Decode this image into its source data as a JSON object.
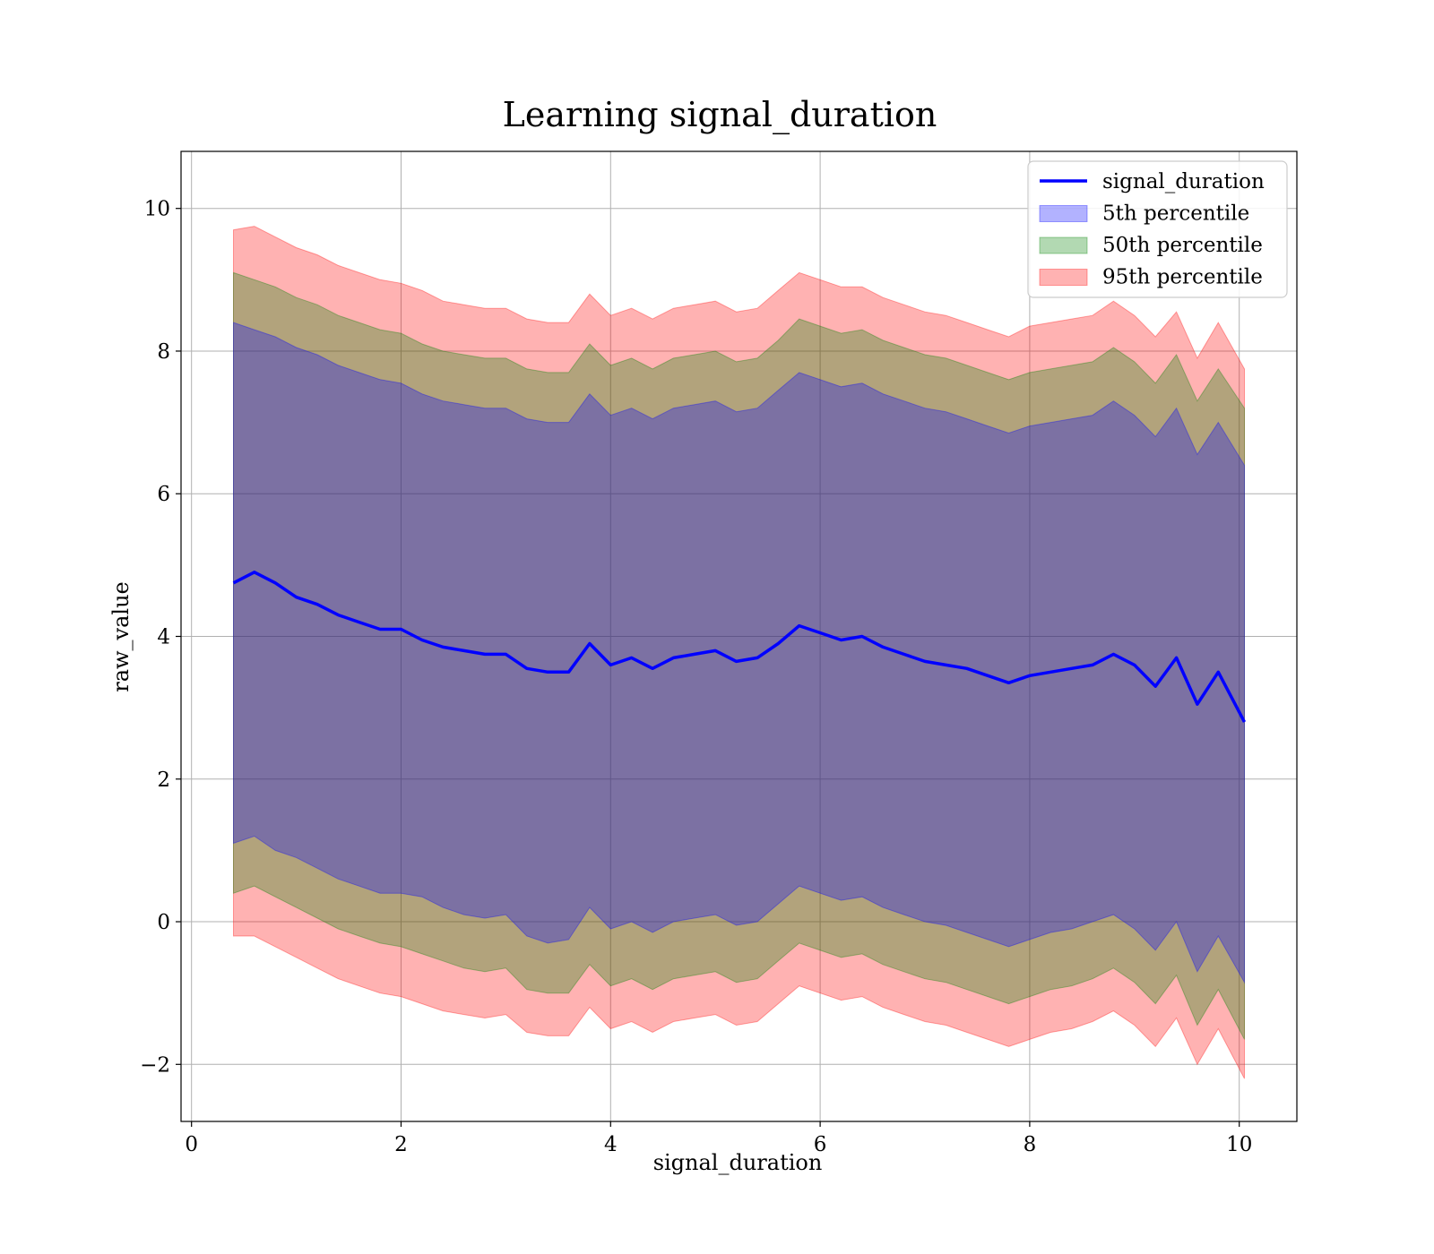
{
  "chart_data": {
    "type": "line",
    "title": "Learning signal_duration",
    "xlabel": "signal_duration",
    "ylabel": "raw_value",
    "xlim": [
      -0.1,
      10.55
    ],
    "ylim": [
      -2.8,
      10.8
    ],
    "xticks": [
      0,
      2,
      4,
      6,
      8,
      10
    ],
    "yticks": [
      -2,
      0,
      2,
      4,
      6,
      8,
      10
    ],
    "xtick_labels": [
      "0",
      "2",
      "4",
      "6",
      "8",
      "10"
    ],
    "ytick_labels": [
      "−2",
      "0",
      "2",
      "4",
      "6",
      "8",
      "10"
    ],
    "grid": true,
    "legend_position": "top-right",
    "x": [
      0.4,
      0.6,
      0.8,
      1.0,
      1.2,
      1.4,
      1.6,
      1.8,
      2.0,
      2.2,
      2.4,
      2.6,
      2.8,
      3.0,
      3.2,
      3.4,
      3.6,
      3.8,
      4.0,
      4.2,
      4.4,
      4.6,
      4.8,
      5.0,
      5.2,
      5.4,
      5.6,
      5.8,
      6.0,
      6.2,
      6.4,
      6.6,
      6.8,
      7.0,
      7.2,
      7.4,
      7.6,
      7.8,
      8.0,
      8.2,
      8.4,
      8.6,
      8.8,
      9.0,
      9.2,
      9.4,
      9.6,
      9.8,
      10.05
    ],
    "series": [
      {
        "name": "signal_duration",
        "kind": "line",
        "color": "#0000ff",
        "values": [
          4.75,
          4.9,
          4.75,
          4.55,
          4.45,
          4.3,
          4.2,
          4.1,
          4.1,
          3.95,
          3.85,
          3.8,
          3.75,
          3.75,
          3.55,
          3.5,
          3.5,
          3.9,
          3.6,
          3.7,
          3.55,
          3.7,
          3.75,
          3.8,
          3.65,
          3.7,
          3.9,
          4.15,
          4.05,
          3.95,
          4.0,
          3.85,
          3.75,
          3.65,
          3.6,
          3.55,
          3.45,
          3.35,
          3.45,
          3.5,
          3.55,
          3.6,
          3.75,
          3.6,
          3.3,
          3.7,
          3.05,
          3.5,
          2.8
        ]
      },
      {
        "name": "5th percentile",
        "kind": "band",
        "color": "#0000ff",
        "upper": [
          8.4,
          8.3,
          8.2,
          8.05,
          7.95,
          7.8,
          7.7,
          7.6,
          7.55,
          7.4,
          7.3,
          7.25,
          7.2,
          7.2,
          7.05,
          7.0,
          7.0,
          7.4,
          7.1,
          7.2,
          7.05,
          7.2,
          7.25,
          7.3,
          7.15,
          7.2,
          7.45,
          7.7,
          7.6,
          7.5,
          7.55,
          7.4,
          7.3,
          7.2,
          7.15,
          7.05,
          6.95,
          6.85,
          6.95,
          7.0,
          7.05,
          7.1,
          7.3,
          7.1,
          6.8,
          7.2,
          6.55,
          7.0,
          6.4
        ],
        "lower": [
          1.1,
          1.2,
          1.0,
          0.9,
          0.75,
          0.6,
          0.5,
          0.4,
          0.4,
          0.35,
          0.2,
          0.1,
          0.05,
          0.1,
          -0.2,
          -0.3,
          -0.25,
          0.2,
          -0.1,
          0.0,
          -0.15,
          0.0,
          0.05,
          0.1,
          -0.05,
          0.0,
          0.25,
          0.5,
          0.4,
          0.3,
          0.35,
          0.2,
          0.1,
          0.0,
          -0.05,
          -0.15,
          -0.25,
          -0.35,
          -0.25,
          -0.15,
          -0.1,
          0.0,
          0.1,
          -0.1,
          -0.4,
          0.0,
          -0.7,
          -0.2,
          -0.85
        ]
      },
      {
        "name": "50th percentile",
        "kind": "band",
        "color": "#008000",
        "upper": [
          9.1,
          9.0,
          8.9,
          8.75,
          8.65,
          8.5,
          8.4,
          8.3,
          8.25,
          8.1,
          8.0,
          7.95,
          7.9,
          7.9,
          7.75,
          7.7,
          7.7,
          8.1,
          7.8,
          7.9,
          7.75,
          7.9,
          7.95,
          8.0,
          7.85,
          7.9,
          8.15,
          8.45,
          8.35,
          8.25,
          8.3,
          8.15,
          8.05,
          7.95,
          7.9,
          7.8,
          7.7,
          7.6,
          7.7,
          7.75,
          7.8,
          7.85,
          8.05,
          7.85,
          7.55,
          7.95,
          7.3,
          7.75,
          7.2
        ],
        "lower": [
          0.4,
          0.5,
          0.35,
          0.2,
          0.05,
          -0.1,
          -0.2,
          -0.3,
          -0.35,
          -0.45,
          -0.55,
          -0.65,
          -0.7,
          -0.65,
          -0.95,
          -1.0,
          -1.0,
          -0.6,
          -0.9,
          -0.8,
          -0.95,
          -0.8,
          -0.75,
          -0.7,
          -0.85,
          -0.8,
          -0.55,
          -0.3,
          -0.4,
          -0.5,
          -0.45,
          -0.6,
          -0.7,
          -0.8,
          -0.85,
          -0.95,
          -1.05,
          -1.15,
          -1.05,
          -0.95,
          -0.9,
          -0.8,
          -0.65,
          -0.85,
          -1.15,
          -0.75,
          -1.45,
          -0.95,
          -1.65
        ]
      },
      {
        "name": "95th percentile",
        "kind": "band",
        "color": "#ff0000",
        "upper": [
          9.7,
          9.75,
          9.6,
          9.45,
          9.35,
          9.2,
          9.1,
          9.0,
          8.95,
          8.85,
          8.7,
          8.65,
          8.6,
          8.6,
          8.45,
          8.4,
          8.4,
          8.8,
          8.5,
          8.6,
          8.45,
          8.6,
          8.65,
          8.7,
          8.55,
          8.6,
          8.85,
          9.1,
          9.0,
          8.9,
          8.9,
          8.75,
          8.65,
          8.55,
          8.5,
          8.4,
          8.3,
          8.2,
          8.35,
          8.4,
          8.45,
          8.5,
          8.7,
          8.5,
          8.2,
          8.55,
          7.9,
          8.4,
          7.75
        ],
        "lower": [
          -0.2,
          -0.2,
          -0.35,
          -0.5,
          -0.65,
          -0.8,
          -0.9,
          -1.0,
          -1.05,
          -1.15,
          -1.25,
          -1.3,
          -1.35,
          -1.3,
          -1.55,
          -1.6,
          -1.6,
          -1.2,
          -1.5,
          -1.4,
          -1.55,
          -1.4,
          -1.35,
          -1.3,
          -1.45,
          -1.4,
          -1.15,
          -0.9,
          -1.0,
          -1.1,
          -1.05,
          -1.2,
          -1.3,
          -1.4,
          -1.45,
          -1.55,
          -1.65,
          -1.75,
          -1.65,
          -1.55,
          -1.5,
          -1.4,
          -1.25,
          -1.45,
          -1.75,
          -1.35,
          -2.0,
          -1.5,
          -2.2
        ]
      }
    ]
  },
  "legend": {
    "items": [
      {
        "label": "signal_duration",
        "kind": "line",
        "color": "#0000ff"
      },
      {
        "label": "5th percentile",
        "kind": "patch",
        "color": "#0000ff"
      },
      {
        "label": "50th percentile",
        "kind": "patch",
        "color": "#008000"
      },
      {
        "label": "95th percentile",
        "kind": "patch",
        "color": "#ff0000"
      }
    ]
  }
}
